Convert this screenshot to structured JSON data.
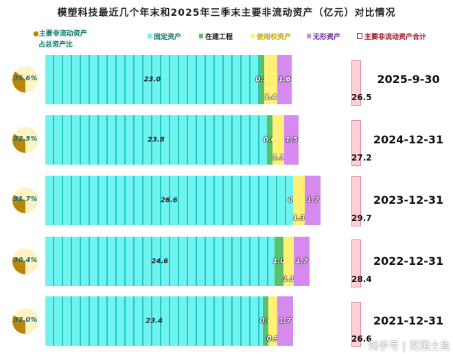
{
  "chart_data": {
    "type": "bar",
    "orientation": "horizontal-stacked",
    "title": "模塑科技最近几个年末和2025年三季末主要非流动资产（亿元）对比情况",
    "categories": [
      "2025-9-30",
      "2024-12-31",
      "2023-12-31",
      "2022-12-31",
      "2021-12-31"
    ],
    "series": [
      {
        "name": "固定资产",
        "color": "#6ff3f0",
        "values": [
          23.0,
          23.8,
          26.6,
          24.6,
          23.4
        ]
      },
      {
        "name": "在建工程",
        "color": "#5cc06a",
        "values": [
          0.5,
          0.6,
          0.0,
          1.0,
          0.6
        ]
      },
      {
        "name": "使用权资产",
        "color": "#fff176",
        "values": [
          1.4,
          1.3,
          1.3,
          1.1,
          0.9
        ]
      },
      {
        "name": "无形资产",
        "color": "#d68af0",
        "values": [
          1.6,
          1.5,
          1.7,
          1.7,
          1.7
        ]
      }
    ],
    "totals": {
      "name": "主要非流动资产合计",
      "color": "#ffd0d6",
      "values": [
        "26.5",
        "27.2",
        "29.7",
        "28.4",
        "26.6"
      ]
    },
    "ratio": {
      "name": "主要非流动资产占总资产比",
      "labels": [
        "35.6%",
        "32.5%",
        "31.7%",
        "30.4%",
        "32.0%"
      ],
      "values": [
        35.6,
        32.5,
        31.7,
        30.4,
        32.0
      ],
      "color": "#b8860b"
    }
  },
  "pie_legend": [
    "主要非流动资产",
    "占总资产比"
  ],
  "watermark": "知乎号 | 茗国土鱼"
}
